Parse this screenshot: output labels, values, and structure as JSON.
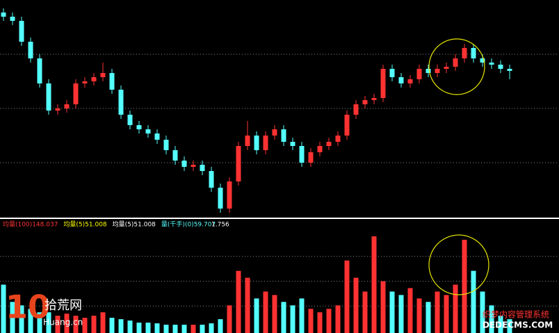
{
  "chart_data": [
    {
      "type": "candlestick",
      "open": [
        98,
        96,
        94,
        84,
        76,
        64,
        51,
        52,
        54,
        64,
        65,
        67,
        69,
        61,
        49,
        44,
        42,
        40,
        37,
        32,
        27,
        24,
        25,
        22,
        14,
        4,
        17,
        34,
        39,
        32,
        39,
        42,
        36,
        34,
        26,
        31,
        34,
        36,
        39,
        49,
        54,
        56,
        57,
        71,
        67,
        64,
        66,
        71,
        69,
        71,
        72,
        76,
        81,
        76,
        74,
        73,
        71
      ],
      "close": [
        96,
        94,
        84,
        76,
        64,
        51,
        52,
        54,
        64,
        65,
        67,
        69,
        61,
        49,
        44,
        42,
        40,
        37,
        32,
        27,
        24,
        25,
        22,
        14,
        4,
        17,
        34,
        39,
        32,
        39,
        42,
        36,
        34,
        26,
        31,
        34,
        36,
        39,
        49,
        54,
        56,
        57,
        71,
        67,
        64,
        66,
        71,
        69,
        71,
        72,
        76,
        81,
        76,
        74,
        73,
        71,
        70
      ],
      "high": [
        100,
        98,
        96,
        86,
        78,
        66,
        54,
        56,
        66,
        67,
        69,
        74,
        71,
        63,
        51,
        46,
        44,
        42,
        39,
        34,
        29,
        27,
        27,
        24,
        16,
        19,
        36,
        46,
        41,
        41,
        44,
        44,
        38,
        36,
        33,
        36,
        38,
        41,
        51,
        56,
        58,
        59,
        73,
        73,
        69,
        68,
        73,
        73,
        73,
        74,
        78,
        83,
        83,
        78,
        76,
        75,
        73
      ],
      "low": [
        94,
        92,
        82,
        74,
        62,
        49,
        49,
        50,
        52,
        62,
        63,
        65,
        59,
        47,
        42,
        40,
        38,
        35,
        30,
        25,
        22,
        22,
        20,
        12,
        2,
        2,
        15,
        32,
        30,
        30,
        37,
        34,
        32,
        24,
        24,
        29,
        32,
        34,
        37,
        47,
        52,
        54,
        55,
        65,
        62,
        62,
        64,
        67,
        67,
        69,
        70,
        74,
        74,
        72,
        71,
        69,
        66
      ],
      "up_color": "#ff3232",
      "down_color": "#54ffff",
      "ylim": [
        0,
        104
      ],
      "grid_lines": [
        26,
        52,
        78
      ]
    },
    {
      "type": "bar",
      "legend": [
        {
          "text": "均量(100)148.037",
          "color": "#ff3232"
        },
        {
          "text": "均量(5)51.008",
          "color": "#ffff00"
        },
        {
          "text": "均量(5)51.008",
          "color": "#ffffff"
        },
        {
          "text": "量(千手)(0)59.707",
          "color": "#54ffff"
        },
        {
          "text": "1.756",
          "color": "#ffffff"
        }
      ],
      "values": [
        70,
        45,
        40,
        35,
        30,
        30,
        25,
        28,
        25,
        22,
        25,
        30,
        22,
        20,
        18,
        15,
        15,
        14,
        12,
        12,
        12,
        12,
        12,
        14,
        20,
        40,
        90,
        80,
        50,
        60,
        55,
        45,
        40,
        50,
        35,
        30,
        35,
        40,
        105,
        80,
        60,
        140,
        75,
        60,
        55,
        65,
        50,
        45,
        60,
        55,
        70,
        135,
        90,
        60,
        40,
        25,
        20
      ],
      "ylim": [
        0,
        150
      ],
      "grid_lines": [
        39,
        75,
        111
      ]
    }
  ],
  "watermarks": [
    "10",
    "拾荒网",
    "Huang.cn",
    "织梦内容管理系统",
    "DEDECMS.COM"
  ]
}
